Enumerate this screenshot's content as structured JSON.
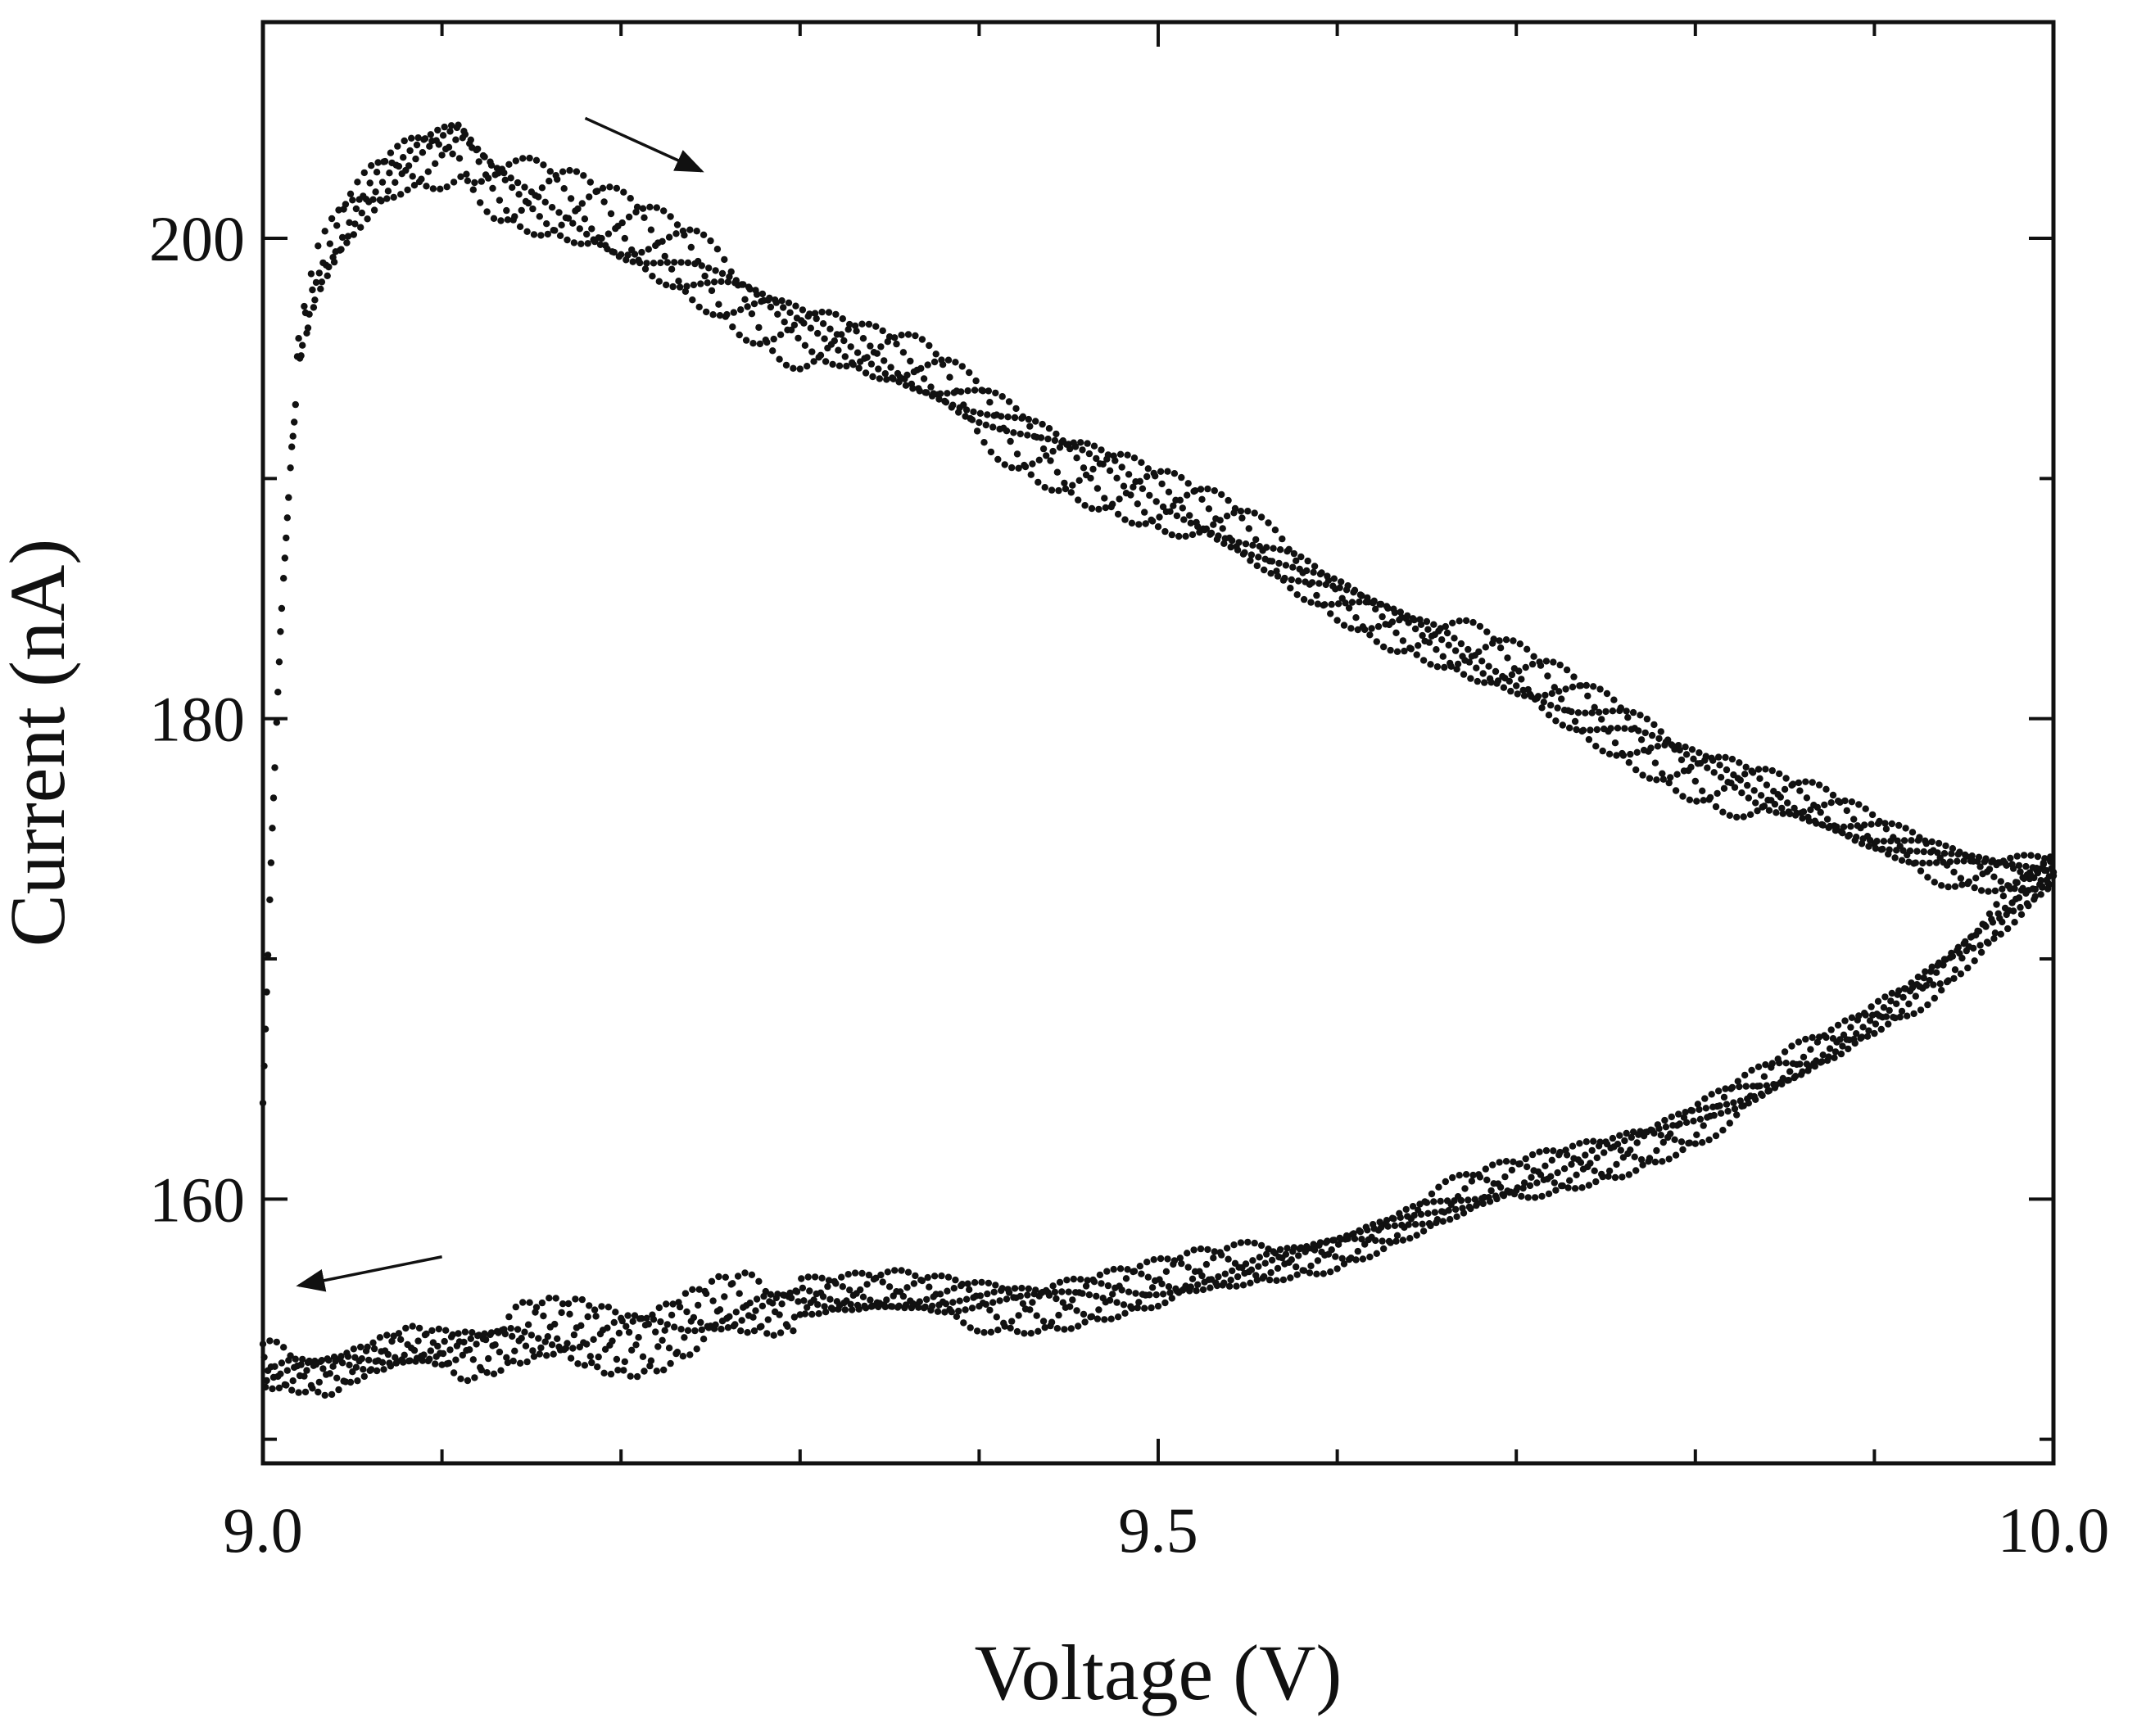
{
  "chart_data": {
    "type": "scatter",
    "title": "",
    "xlabel": "Voltage (V)",
    "ylabel": "Current (nA)",
    "xlim": [
      9.0,
      10.0
    ],
    "ylim": [
      149.0,
      209.0
    ],
    "grid": false,
    "legend": "none",
    "x_ticks": [
      {
        "value": 9.0,
        "label": "9.0"
      },
      {
        "value": 9.5,
        "label": "9.5"
      },
      {
        "value": 10.0,
        "label": "10.0"
      }
    ],
    "y_ticks": [
      {
        "value": 160,
        "label": "160"
      },
      {
        "value": 180,
        "label": "180"
      },
      {
        "value": 200,
        "label": "200"
      }
    ],
    "x_minor_ticks": [
      9.1,
      9.2,
      9.3,
      9.4,
      9.6,
      9.7,
      9.8,
      9.9
    ],
    "y_minor_ticks": [
      150,
      170,
      190
    ],
    "marker_color": "#111111",
    "annotations": [
      {
        "type": "arrow",
        "meaning": "forward sweep (increasing voltage)",
        "from": [
          9.18,
          205.0
        ],
        "to": [
          9.245,
          202.8
        ]
      },
      {
        "type": "arrow",
        "meaning": "reverse sweep (decreasing voltage)",
        "from": [
          9.1,
          157.6
        ],
        "to": [
          9.02,
          156.4
        ]
      }
    ],
    "series": [
      {
        "sweep": "forward",
        "x": [
          9.0,
          9.005,
          9.01,
          9.015,
          9.02,
          9.03,
          9.04,
          9.05,
          9.06,
          9.07,
          9.08,
          9.09,
          9.1,
          9.11,
          9.12,
          9.13,
          9.14,
          9.16,
          9.18,
          9.2,
          9.22,
          9.24,
          9.26,
          9.28,
          9.3,
          9.32,
          9.34,
          9.36,
          9.38,
          9.4,
          9.42,
          9.44,
          9.46,
          9.48,
          9.5,
          9.52,
          9.54,
          9.56,
          9.58,
          9.6,
          9.62,
          9.64,
          9.66,
          9.68,
          9.7,
          9.72,
          9.74,
          9.76,
          9.78,
          9.8,
          9.82,
          9.84,
          9.86,
          9.88,
          9.9,
          9.92,
          9.94,
          9.96,
          9.98,
          10.0
        ],
        "y": [
          164.0,
          175.0,
          184.0,
          190.0,
          195.0,
          198.0,
          199.5,
          200.8,
          201.8,
          202.6,
          203.2,
          203.6,
          204.0,
          204.3,
          203.3,
          202.5,
          202.0,
          201.3,
          200.7,
          200.0,
          199.4,
          198.8,
          198.0,
          197.2,
          196.4,
          195.8,
          195.0,
          194.3,
          193.6,
          192.8,
          192.0,
          191.3,
          190.6,
          189.9,
          189.1,
          188.4,
          187.6,
          186.8,
          186.0,
          185.3,
          184.6,
          183.9,
          183.1,
          182.3,
          181.6,
          180.9,
          180.2,
          179.5,
          178.8,
          178.1,
          177.5,
          176.8,
          176.2,
          175.6,
          175.0,
          174.6,
          174.2,
          173.9,
          173.7,
          173.6
        ],
        "y_spread": [
          0,
          0,
          0,
          0,
          1.4,
          1.6,
          1.8,
          1.9,
          2.0,
          2.0,
          2.0,
          2.0,
          2.0,
          1.9,
          2.0,
          2.0,
          2.0,
          2.0,
          2.0,
          2.0,
          2.0,
          2.0,
          2.0,
          2.0,
          2.0,
          2.0,
          2.0,
          1.9,
          1.9,
          1.8,
          1.8,
          1.8,
          1.8,
          1.8,
          1.7,
          1.6,
          1.6,
          1.5,
          1.6,
          1.6,
          1.6,
          1.6,
          1.6,
          1.6,
          1.6,
          1.6,
          1.6,
          1.6,
          1.6,
          1.6,
          1.6,
          1.6,
          1.5,
          1.5,
          1.4,
          1.3,
          1.2,
          1.1,
          1.0,
          0.8
        ]
      },
      {
        "sweep": "reverse",
        "x": [
          10.0,
          9.98,
          9.96,
          9.94,
          9.92,
          9.9,
          9.88,
          9.86,
          9.84,
          9.82,
          9.8,
          9.78,
          9.76,
          9.74,
          9.72,
          9.7,
          9.68,
          9.66,
          9.64,
          9.62,
          9.6,
          9.58,
          9.56,
          9.54,
          9.52,
          9.5,
          9.48,
          9.46,
          9.44,
          9.42,
          9.4,
          9.38,
          9.36,
          9.34,
          9.32,
          9.3,
          9.28,
          9.26,
          9.24,
          9.22,
          9.2,
          9.18,
          9.16,
          9.14,
          9.12,
          9.1,
          9.08,
          9.06,
          9.04,
          9.02,
          9.0
        ],
        "y": [
          173.6,
          172.4,
          171.1,
          169.8,
          168.6,
          167.5,
          166.4,
          165.5,
          164.7,
          164.0,
          163.3,
          162.7,
          162.1,
          161.6,
          161.1,
          160.6,
          160.1,
          159.6,
          159.1,
          158.6,
          158.1,
          157.7,
          157.3,
          156.9,
          156.6,
          156.3,
          156.1,
          155.9,
          155.8,
          155.8,
          155.8,
          155.8,
          155.8,
          155.8,
          155.8,
          155.9,
          155.5,
          155.2,
          154.8,
          154.5,
          154.3,
          154.2,
          154.2,
          154.3,
          154.0,
          153.7,
          153.5,
          153.3,
          153.1,
          152.9,
          152.7
        ],
        "y_spread": [
          0.8,
          1.0,
          1.0,
          1.1,
          1.1,
          1.2,
          1.2,
          1.2,
          1.2,
          1.2,
          1.2,
          1.2,
          1.2,
          1.2,
          1.2,
          1.2,
          1.2,
          1.2,
          1.2,
          1.2,
          1.2,
          1.2,
          1.2,
          1.2,
          1.3,
          1.3,
          1.3,
          1.3,
          1.4,
          1.4,
          1.4,
          1.4,
          1.4,
          1.4,
          1.4,
          1.5,
          1.6,
          1.7,
          1.7,
          1.8,
          1.8,
          1.8,
          1.7,
          1.6,
          1.5,
          1.4,
          1.3,
          1.3,
          1.3,
          1.3,
          1.4
        ]
      }
    ]
  }
}
